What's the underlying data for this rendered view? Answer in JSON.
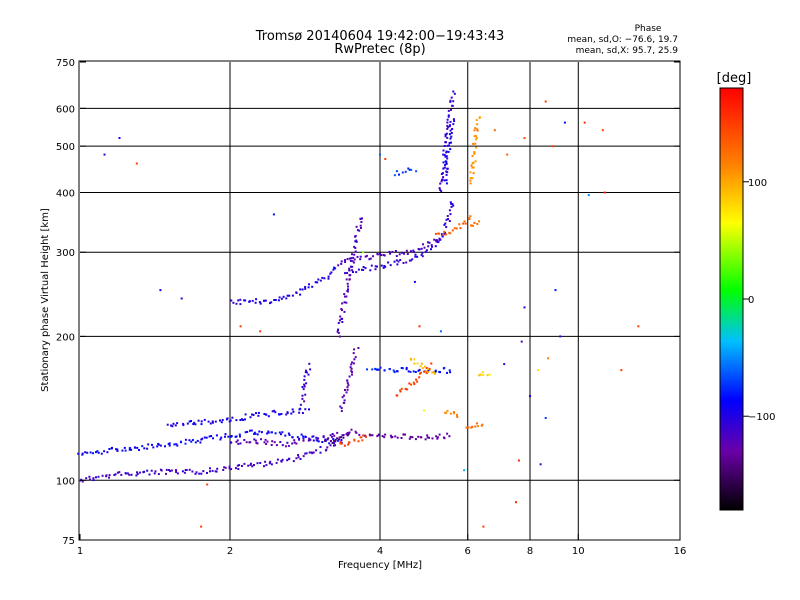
{
  "chart_data": {
    "type": "scatter",
    "title": "Tromsø 20140604 19:42:00−19:43:43",
    "subtitle": "RwPretec (8p)",
    "stats_title": "Phase",
    "stats_o": "mean, sd,O: −76.6, 19.7",
    "stats_x": "mean, sd,X:  95.7, 25.9",
    "xlabel": "Frequency [MHz]",
    "ylabel": "Stationary phase Virtual Height [km]",
    "xscale": "log",
    "yscale": "log",
    "xlim": [
      1,
      16
    ],
    "ylim": [
      75,
      750
    ],
    "xticks": [
      1,
      2,
      4,
      6,
      8,
      10,
      16
    ],
    "xtick_labels": [
      "1",
      "2",
      "4",
      "6",
      "8",
      "10",
      "16"
    ],
    "xgrid": [
      2,
      4,
      6,
      8,
      10
    ],
    "yticks": [
      75,
      100,
      200,
      300,
      400,
      500,
      600,
      750
    ],
    "ytick_labels": [
      "75",
      "100",
      "200",
      "300",
      "400",
      "500",
      "600",
      "750"
    ],
    "ygrid": [
      100,
      200,
      300,
      400,
      500,
      600
    ],
    "grid": true,
    "colorbar": {
      "label": "[deg]",
      "range": [
        -180,
        180
      ],
      "ticks": [
        100,
        0,
        -100
      ],
      "tick_labels": [
        "100",
        "0",
        "−100"
      ],
      "colormap": "rainbow"
    },
    "traces": [
      {
        "x": [
          1.0,
          1.2,
          1.45,
          1.7,
          2.0,
          2.3,
          2.7,
          3.0,
          3.3
        ],
        "y": [
          100,
          103,
          104,
          104,
          106,
          108,
          111,
          115,
          120
        ],
        "phase": -112
      },
      {
        "x": [
          1.0,
          1.2,
          1.45,
          1.7,
          2.0,
          2.2,
          2.5,
          2.8,
          3.1,
          3.4
        ],
        "y": [
          113,
          116,
          118,
          121,
          124,
          126,
          125,
          123,
          121,
          120
        ],
        "phase": -88
      },
      {
        "x": [
          1.5,
          1.7,
          2.0,
          2.3,
          2.6,
          2.9
        ],
        "y": [
          130,
          132,
          134,
          137,
          139,
          140
        ],
        "phase": -95
      },
      {
        "x": [
          2.0,
          2.2,
          2.4,
          2.6,
          2.8,
          3.0,
          3.2,
          3.4,
          3.6
        ],
        "y": [
          120,
          121,
          120,
          119,
          121,
          123,
          124,
          125,
          128
        ],
        "phase": -122
      },
      {
        "x": [
          2.8,
          2.82,
          2.85,
          2.88
        ],
        "y": [
          145,
          155,
          165,
          175
        ],
        "phase": -110
      },
      {
        "x": [
          2.0,
          2.2,
          2.5,
          2.7,
          2.9,
          3.1,
          3.3
        ],
        "y": [
          236,
          236,
          238,
          245,
          255,
          265,
          280
        ],
        "phase": -96
      },
      {
        "x": [
          3.3,
          3.6,
          4.0,
          4.3,
          4.6,
          4.9,
          5.2,
          5.45
        ],
        "y": [
          285,
          290,
          295,
          298,
          302,
          308,
          318,
          330
        ],
        "phase": -118
      },
      {
        "x": [
          3.4,
          3.7,
          4.0,
          4.3,
          4.6,
          5.0,
          5.3,
          5.5,
          5.6
        ],
        "y": [
          272,
          276,
          280,
          285,
          290,
          300,
          320,
          350,
          390
        ],
        "phase": -106
      },
      {
        "x": [
          5.3,
          5.35,
          5.4,
          5.45,
          5.5,
          5.55,
          5.6,
          5.65
        ],
        "y": [
          400,
          440,
          480,
          520,
          560,
          600,
          630,
          650
        ],
        "phase": -108
      },
      {
        "x": [
          5.4,
          5.45,
          5.5,
          5.55,
          5.6
        ],
        "y": [
          420,
          460,
          500,
          540,
          580
        ],
        "phase": -93
      },
      {
        "x": [
          3.3,
          3.35,
          3.4,
          3.45,
          3.5,
          3.55,
          3.6,
          3.7
        ],
        "y": [
          200,
          220,
          240,
          260,
          280,
          300,
          330,
          360
        ],
        "phase": -118
      },
      {
        "x": [
          3.35,
          3.4,
          3.45,
          3.5,
          3.55,
          3.6
        ],
        "y": [
          140,
          150,
          160,
          170,
          180,
          190
        ],
        "phase": -125
      },
      {
        "x": [
          3.6,
          4.0,
          4.4,
          4.8,
          5.2,
          5.6
        ],
        "y": [
          125,
          124,
          124,
          123,
          123,
          124
        ],
        "phase": -130
      },
      {
        "x": [
          3.1,
          3.2,
          3.3,
          3.4,
          3.5
        ],
        "y": [
          122,
          121,
          122,
          124,
          126
        ],
        "phase": -140
      },
      {
        "x": [
          3.3,
          3.4,
          3.5,
          3.6,
          3.7,
          3.8
        ],
        "y": [
          119,
          119,
          120,
          121,
          123,
          125
        ],
        "phase": 148
      },
      {
        "x": [
          3.8,
          4.2,
          4.6,
          5.0,
          5.4,
          5.6
        ],
        "y": [
          170,
          170,
          170,
          170,
          170,
          169
        ],
        "phase": -82
      },
      {
        "x": [
          4.3,
          4.5,
          4.7,
          4.9,
          5.1
        ],
        "y": [
          150,
          155,
          160,
          168,
          175
        ],
        "phase": 150
      },
      {
        "x": [
          4.6,
          4.8,
          5.0,
          5.2
        ],
        "y": [
          180,
          175,
          170,
          165
        ],
        "phase": 90
      },
      {
        "x": [
          5.4,
          5.6,
          5.8
        ],
        "y": [
          140,
          138,
          136
        ],
        "phase": 112
      },
      {
        "x": [
          6.0,
          6.15,
          6.3,
          6.45
        ],
        "y": [
          130,
          130,
          131,
          132
        ],
        "phase": 120
      },
      {
        "x": [
          6.3,
          6.5,
          6.7
        ],
        "y": [
          166,
          167,
          168
        ],
        "phase": 82
      },
      {
        "x": [
          5.2,
          5.5,
          5.8,
          6.0,
          6.1
        ],
        "y": [
          325,
          330,
          340,
          350,
          360
        ],
        "phase": 132
      },
      {
        "x": [
          6.1,
          6.15,
          6.2,
          6.25,
          6.3
        ],
        "y": [
          420,
          460,
          500,
          540,
          580
        ],
        "phase": 110
      },
      {
        "x": [
          6.1,
          6.2,
          6.3
        ],
        "y": [
          340,
          345,
          350
        ],
        "phase": 128
      },
      {
        "x": [
          4.3,
          4.45,
          4.6,
          4.75
        ],
        "y": [
          438,
          442,
          446,
          450
        ],
        "phase": -70
      }
    ],
    "points": [
      {
        "x": 1.12,
        "y": 480,
        "phase": -110
      },
      {
        "x": 1.3,
        "y": 460,
        "phase": 148
      },
      {
        "x": 1.2,
        "y": 520,
        "phase": -100
      },
      {
        "x": 1.6,
        "y": 240,
        "phase": -105
      },
      {
        "x": 1.45,
        "y": 250,
        "phase": -90
      },
      {
        "x": 2.45,
        "y": 360,
        "phase": -80
      },
      {
        "x": 2.1,
        "y": 210,
        "phase": 150
      },
      {
        "x": 2.3,
        "y": 205,
        "phase": 152
      },
      {
        "x": 1.75,
        "y": 80,
        "phase": 148
      },
      {
        "x": 1.8,
        "y": 98,
        "phase": 146
      },
      {
        "x": 6.45,
        "y": 80,
        "phase": 150
      },
      {
        "x": 7.5,
        "y": 90,
        "phase": 160
      },
      {
        "x": 7.6,
        "y": 110,
        "phase": 162
      },
      {
        "x": 8.4,
        "y": 108,
        "phase": -115
      },
      {
        "x": 5.9,
        "y": 105,
        "phase": -40
      },
      {
        "x": 7.8,
        "y": 230,
        "phase": -100
      },
      {
        "x": 8.3,
        "y": 170,
        "phase": 70
      },
      {
        "x": 8.7,
        "y": 180,
        "phase": 120
      },
      {
        "x": 9.2,
        "y": 200,
        "phase": -110
      },
      {
        "x": 8.6,
        "y": 620,
        "phase": 150
      },
      {
        "x": 9.4,
        "y": 560,
        "phase": -80
      },
      {
        "x": 10.3,
        "y": 560,
        "phase": 160
      },
      {
        "x": 11.2,
        "y": 540,
        "phase": 150
      },
      {
        "x": 10.5,
        "y": 395,
        "phase": -50
      },
      {
        "x": 11.3,
        "y": 400,
        "phase": 160
      },
      {
        "x": 12.2,
        "y": 170,
        "phase": 150
      },
      {
        "x": 13.2,
        "y": 210,
        "phase": 150
      },
      {
        "x": 7.2,
        "y": 480,
        "phase": 130
      },
      {
        "x": 7.8,
        "y": 520,
        "phase": 140
      },
      {
        "x": 8.9,
        "y": 500,
        "phase": 150
      },
      {
        "x": 8.0,
        "y": 150,
        "phase": -90
      },
      {
        "x": 8.6,
        "y": 135,
        "phase": -70
      },
      {
        "x": 9.0,
        "y": 250,
        "phase": -80
      },
      {
        "x": 4.8,
        "y": 210,
        "phase": 160
      },
      {
        "x": 5.3,
        "y": 205,
        "phase": -60
      },
      {
        "x": 7.1,
        "y": 175,
        "phase": -110
      },
      {
        "x": 7.7,
        "y": 195,
        "phase": -120
      },
      {
        "x": 4.0,
        "y": 480,
        "phase": -60
      },
      {
        "x": 4.1,
        "y": 470,
        "phase": 150
      },
      {
        "x": 3.7,
        "y": 300,
        "phase": 40
      },
      {
        "x": 4.9,
        "y": 140,
        "phase": 60
      },
      {
        "x": 4.7,
        "y": 260,
        "phase": -90
      },
      {
        "x": 6.8,
        "y": 540,
        "phase": 130
      }
    ]
  }
}
